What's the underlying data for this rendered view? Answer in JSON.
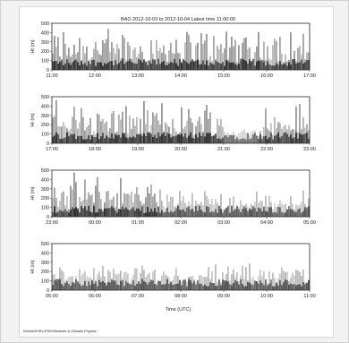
{
  "chart_data": {
    "type": "heatmap",
    "title": "BAO 2012-10-03 to 2012-10-04 Latest time 11:00:00",
    "xlabel": "Time (UTC)",
    "ylabel": "Ht (m)",
    "footer": "NOAA/ESRL/PSD/Weather & Climate Physics",
    "ylim": [
      0,
      500
    ],
    "y_ticks": [
      "500",
      "400",
      "300",
      "200",
      "100",
      "0"
    ],
    "panels": [
      {
        "start_hour": 11,
        "x_ticks": [
          "11:00",
          "12:00",
          "13:00",
          "14:00",
          "15:00",
          "16:00",
          "17:00"
        ]
      },
      {
        "start_hour": 17,
        "x_ticks": [
          "17:00",
          "18:00",
          "19:00",
          "20:00",
          "21:00",
          "22:00",
          "23:00"
        ]
      },
      {
        "start_hour": 23,
        "x_ticks": [
          "23:00",
          "00:00",
          "01:00",
          "02:00",
          "03:00",
          "04:00",
          "05:00"
        ]
      },
      {
        "start_hour": 5,
        "x_ticks": [
          "05:00",
          "06:00",
          "07:00",
          "08:00",
          "09:00",
          "10:00",
          "11:00"
        ]
      }
    ],
    "colors": {
      "echo": "#1a1a1a",
      "background": "#ffffff",
      "axis": "#333333"
    }
  }
}
